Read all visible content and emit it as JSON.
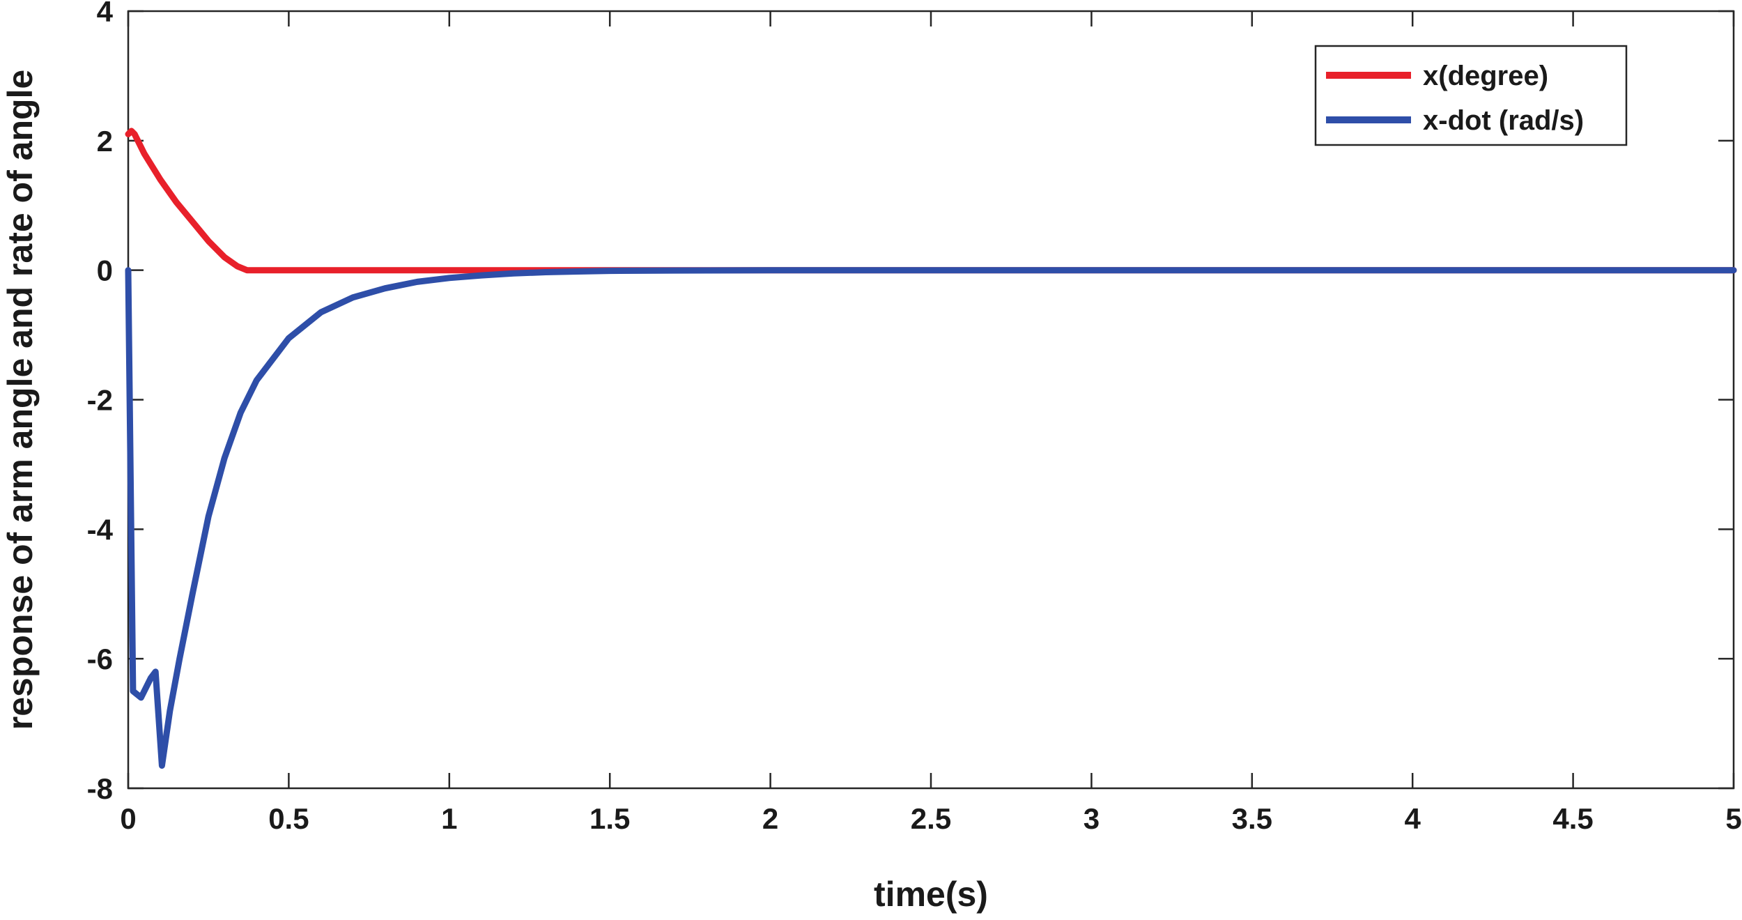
{
  "chart_data": {
    "type": "line",
    "title": "",
    "xlabel": "time(s)",
    "ylabel": "response of arm angle and rate of angle",
    "xlim": [
      0,
      5
    ],
    "ylim": [
      -8,
      4
    ],
    "xticks": [
      0,
      0.5,
      1,
      1.5,
      2,
      2.5,
      3,
      3.5,
      4,
      4.5,
      5
    ],
    "xtick_labels": [
      "0",
      "0.5",
      "1",
      "1.5",
      "2",
      "2.5",
      "3",
      "3.5",
      "4",
      "4.5",
      "5"
    ],
    "yticks": [
      -8,
      -6,
      -4,
      -2,
      0,
      2,
      4
    ],
    "ytick_labels": [
      "-8",
      "-6",
      "-4",
      "-2",
      "0",
      "2",
      "4"
    ],
    "grid": false,
    "legend_position": "top-right",
    "series": [
      {
        "name": "x(degree)",
        "color": "#e8202a",
        "x": [
          0,
          0.01,
          0.02,
          0.05,
          0.1,
          0.15,
          0.2,
          0.25,
          0.3,
          0.34,
          0.37,
          0.5,
          1,
          2,
          3,
          4,
          5
        ],
        "y": [
          2.1,
          2.15,
          2.1,
          1.8,
          1.4,
          1.05,
          0.75,
          0.45,
          0.2,
          0.06,
          0.0,
          0.0,
          0.0,
          0.0,
          0.0,
          0.0,
          0.0
        ]
      },
      {
        "name": "x-dot (rad/s)",
        "color": "#2e4ea8",
        "x": [
          0,
          0.015,
          0.04,
          0.07,
          0.085,
          0.105,
          0.13,
          0.16,
          0.2,
          0.25,
          0.3,
          0.35,
          0.4,
          0.5,
          0.6,
          0.7,
          0.8,
          0.9,
          1.0,
          1.1,
          1.2,
          1.3,
          1.4,
          1.5,
          1.7,
          2.0,
          2.5,
          3,
          3.5,
          4,
          4.5,
          5
        ],
        "y": [
          0,
          -6.5,
          -6.6,
          -6.3,
          -6.2,
          -7.65,
          -6.8,
          -6.0,
          -5.0,
          -3.8,
          -2.9,
          -2.2,
          -1.7,
          -1.05,
          -0.65,
          -0.42,
          -0.28,
          -0.18,
          -0.12,
          -0.08,
          -0.05,
          -0.03,
          -0.02,
          -0.01,
          -0.005,
          0,
          0,
          0,
          0,
          0,
          0,
          0
        ]
      }
    ]
  }
}
